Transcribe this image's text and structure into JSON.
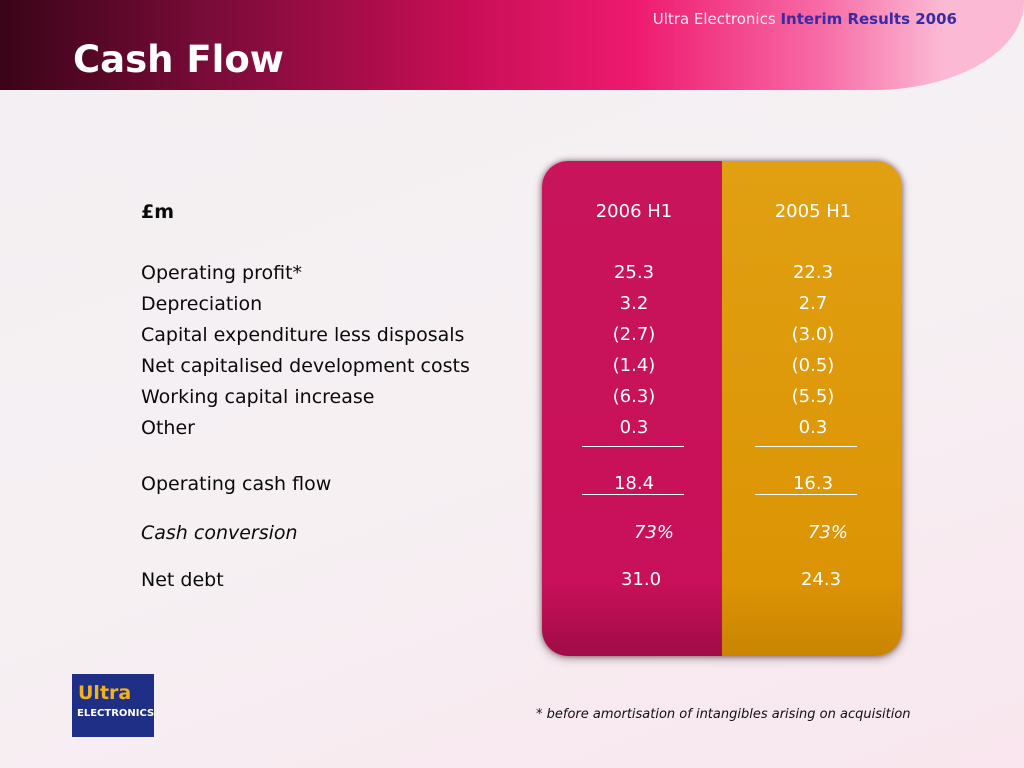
{
  "header": {
    "brand_name": "Ultra Electronics",
    "brand_accent": "Interim Results 2006",
    "title": "Cash Flow"
  },
  "table": {
    "unit_label": "£m",
    "columns": [
      "2006 H1",
      "2005 H1"
    ],
    "rows": [
      {
        "label": "Operating profit*",
        "values": [
          "25.3",
          "22.3"
        ]
      },
      {
        "label": "Depreciation",
        "values": [
          "3.2",
          "2.7"
        ]
      },
      {
        "label": "Capital expenditure less disposals",
        "values": [
          "(2.7)",
          "(3.0)"
        ]
      },
      {
        "label": "Net capitalised development costs",
        "values": [
          "(1.4)",
          "(0.5)"
        ]
      },
      {
        "label": "Working capital increase",
        "values": [
          "(6.3)",
          "(5.5)"
        ]
      },
      {
        "label": "Other",
        "values": [
          "0.3",
          "0.3"
        ]
      }
    ],
    "operating_cash_flow": {
      "label": "Operating cash flow",
      "values": [
        "18.4",
        "16.3"
      ]
    },
    "cash_conversion": {
      "label": "Cash conversion",
      "values": [
        "73%",
        "73%"
      ]
    },
    "net_debt": {
      "label": "Net debt",
      "values": [
        "31.0",
        "24.3"
      ]
    }
  },
  "logo": {
    "line1": "Ultra",
    "line2": "ELECTRONICS"
  },
  "footnote": "* before amortisation of intangibles arising on acquisition",
  "colors": {
    "header_dark": "#3a0418",
    "header_pink": "#ee1a6f",
    "column_2006": "#c9105a",
    "column_2005": "#dc9404",
    "logo_blue": "#1f2f86",
    "logo_gold": "#f2b21a",
    "brand_accent": "#3a2aa6"
  }
}
